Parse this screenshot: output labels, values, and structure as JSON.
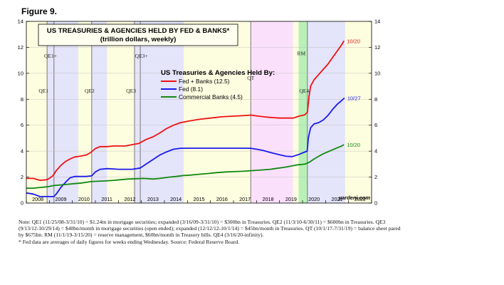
{
  "figure_label": "Figure 9.",
  "credit": "yardeni.com",
  "notes": [
    "Note: QE1 (11/25/08-3/31/10) = $1.24tn in mortgage securities; expanded (3/16/09-3/31/10) = $300bn in Treasuries. QE2 (11/3/10-6/30/11) = $600bn in Treasuries. QE3 (9/13/12-10/29/14) = $40bn/month in mortgage securities (open ended); expanded (12/12/12-10/1/14) = $45bn/month in Treasuries. QT (10/1/17-7/31/19) = balance sheet pared by $675bn. RM (11/1/19-3/15/20) = reserve management, $60bn/month in Treasury bills. QE4 (3/16/20-infinity).",
    "*  Fed data are averages of daily figures for weeks ending Wednesday. Source: Federal Reserve Board."
  ],
  "colors": {
    "fed_banks": "#ee1111",
    "fed": "#1a1aee",
    "banks": "#118811",
    "band_yellow": "#fdfde0",
    "band_blue": "#e4e4fa",
    "band_pink": "#fbe0fb",
    "band_green": "#b8f0b8",
    "title_box": "#fffff0"
  },
  "chart_data": {
    "type": "line",
    "title": "US TREASURIES & AGENCIES HELD BY FED & BANKS*",
    "subtitle": "(trillion dollars, weekly)",
    "legend_title": "US Treasuries & Agencies Held By:",
    "x_ticks": [
      "2008",
      "2009",
      "2010",
      "2011",
      "2012",
      "2013",
      "2014",
      "2015",
      "2016",
      "2017",
      "2018",
      "2019",
      "2020",
      "2021",
      "2022"
    ],
    "y_ticks": [
      "0",
      "2",
      "4",
      "6",
      "8",
      "10",
      "12",
      "14"
    ],
    "xlim": [
      2008.0,
      2023.0
    ],
    "ylim": [
      0,
      14
    ],
    "regions": [
      {
        "label": "QE1",
        "start": 2008.9,
        "end": 2010.25,
        "fill": "band_blue"
      },
      {
        "label": "QE1+",
        "start": 2009.2,
        "end": 2010.25,
        "fill": "band_blue"
      },
      {
        "label": "QE2",
        "start": 2010.84,
        "end": 2011.5,
        "fill": "band_blue"
      },
      {
        "label": "QE3",
        "start": 2012.7,
        "end": 2014.83,
        "fill": "band_blue"
      },
      {
        "label": "QE3+",
        "start": 2012.95,
        "end": 2014.83,
        "fill": "band_blue"
      },
      {
        "label": "QT",
        "start": 2017.75,
        "end": 2019.58,
        "fill": "band_pink"
      },
      {
        "label": "RM",
        "start": 2019.83,
        "end": 2020.21,
        "fill": "band_green"
      },
      {
        "label": "QE4",
        "start": 2020.21,
        "end": 2021.85,
        "fill": "band_blue"
      }
    ],
    "region_labels": [
      {
        "text": "QE1",
        "x": 2008.75,
        "y": 8.5
      },
      {
        "text": "QE1+",
        "x": 2009.05,
        "y": 11.2
      },
      {
        "text": "QE2",
        "x": 2010.75,
        "y": 8.5
      },
      {
        "text": "QE3",
        "x": 2012.55,
        "y": 8.5
      },
      {
        "text": "QE3+",
        "x": 2013.0,
        "y": 11.2
      },
      {
        "text": "QT",
        "x": 2017.75,
        "y": 9.5
      },
      {
        "text": "RM",
        "x": 2019.95,
        "y": 11.4
      },
      {
        "text": "QE4",
        "x": 2020.07,
        "y": 8.5
      }
    ],
    "series": [
      {
        "name": "Fed + Banks (12.5)",
        "color": "fed_banks",
        "end_label": "10/20",
        "points": [
          [
            2008.0,
            1.9
          ],
          [
            2008.3,
            1.9
          ],
          [
            2008.6,
            1.75
          ],
          [
            2008.9,
            1.8
          ],
          [
            2009.0,
            1.9
          ],
          [
            2009.15,
            2.1
          ],
          [
            2009.3,
            2.5
          ],
          [
            2009.5,
            2.9
          ],
          [
            2009.7,
            3.2
          ],
          [
            2009.9,
            3.4
          ],
          [
            2010.1,
            3.55
          ],
          [
            2010.3,
            3.6
          ],
          [
            2010.6,
            3.7
          ],
          [
            2010.8,
            3.9
          ],
          [
            2011.0,
            4.2
          ],
          [
            2011.2,
            4.35
          ],
          [
            2011.5,
            4.35
          ],
          [
            2011.8,
            4.4
          ],
          [
            2012.0,
            4.4
          ],
          [
            2012.3,
            4.4
          ],
          [
            2012.6,
            4.5
          ],
          [
            2012.9,
            4.6
          ],
          [
            2013.2,
            4.9
          ],
          [
            2013.5,
            5.1
          ],
          [
            2013.8,
            5.4
          ],
          [
            2014.1,
            5.75
          ],
          [
            2014.4,
            6.0
          ],
          [
            2014.7,
            6.2
          ],
          [
            2015.0,
            6.3
          ],
          [
            2015.5,
            6.45
          ],
          [
            2016.0,
            6.55
          ],
          [
            2016.5,
            6.65
          ],
          [
            2017.0,
            6.7
          ],
          [
            2017.5,
            6.75
          ],
          [
            2017.75,
            6.78
          ],
          [
            2018.0,
            6.72
          ],
          [
            2018.3,
            6.65
          ],
          [
            2018.6,
            6.6
          ],
          [
            2019.0,
            6.55
          ],
          [
            2019.3,
            6.55
          ],
          [
            2019.6,
            6.55
          ],
          [
            2019.85,
            6.7
          ],
          [
            2020.1,
            6.8
          ],
          [
            2020.21,
            7.0
          ],
          [
            2020.28,
            8.2
          ],
          [
            2020.35,
            9.0
          ],
          [
            2020.5,
            9.5
          ],
          [
            2020.7,
            9.9
          ],
          [
            2020.9,
            10.3
          ],
          [
            2021.1,
            10.7
          ],
          [
            2021.3,
            11.2
          ],
          [
            2021.5,
            11.7
          ],
          [
            2021.7,
            12.2
          ],
          [
            2021.8,
            12.5
          ]
        ]
      },
      {
        "name": "Fed (8.1)",
        "color": "fed",
        "end_label": "10/27",
        "points": [
          [
            2008.0,
            0.78
          ],
          [
            2008.3,
            0.7
          ],
          [
            2008.6,
            0.5
          ],
          [
            2008.9,
            0.5
          ],
          [
            2009.2,
            0.5
          ],
          [
            2009.3,
            0.7
          ],
          [
            2009.5,
            1.2
          ],
          [
            2009.7,
            1.6
          ],
          [
            2009.9,
            1.95
          ],
          [
            2010.1,
            2.05
          ],
          [
            2010.3,
            2.05
          ],
          [
            2010.6,
            2.05
          ],
          [
            2010.84,
            2.1
          ],
          [
            2011.0,
            2.4
          ],
          [
            2011.2,
            2.6
          ],
          [
            2011.5,
            2.65
          ],
          [
            2011.8,
            2.63
          ],
          [
            2012.0,
            2.6
          ],
          [
            2012.3,
            2.6
          ],
          [
            2012.6,
            2.6
          ],
          [
            2012.95,
            2.7
          ],
          [
            2013.2,
            3.0
          ],
          [
            2013.5,
            3.35
          ],
          [
            2013.8,
            3.7
          ],
          [
            2014.1,
            3.95
          ],
          [
            2014.4,
            4.15
          ],
          [
            2014.7,
            4.22
          ],
          [
            2015.0,
            4.23
          ],
          [
            2015.5,
            4.23
          ],
          [
            2016.0,
            4.23
          ],
          [
            2016.5,
            4.23
          ],
          [
            2017.0,
            4.23
          ],
          [
            2017.5,
            4.23
          ],
          [
            2017.75,
            4.22
          ],
          [
            2018.0,
            4.15
          ],
          [
            2018.3,
            4.05
          ],
          [
            2018.6,
            3.9
          ],
          [
            2019.0,
            3.72
          ],
          [
            2019.3,
            3.6
          ],
          [
            2019.55,
            3.58
          ],
          [
            2019.85,
            3.75
          ],
          [
            2020.05,
            3.9
          ],
          [
            2020.2,
            4.0
          ],
          [
            2020.25,
            5.0
          ],
          [
            2020.35,
            5.8
          ],
          [
            2020.5,
            6.1
          ],
          [
            2020.7,
            6.2
          ],
          [
            2020.9,
            6.4
          ],
          [
            2021.1,
            6.75
          ],
          [
            2021.3,
            7.2
          ],
          [
            2021.5,
            7.6
          ],
          [
            2021.7,
            7.9
          ],
          [
            2021.82,
            8.1
          ]
        ]
      },
      {
        "name": "Commercial Banks (4.5)",
        "color": "banks",
        "end_label": "10/20",
        "points": [
          [
            2008.0,
            1.15
          ],
          [
            2008.3,
            1.15
          ],
          [
            2008.6,
            1.2
          ],
          [
            2008.9,
            1.25
          ],
          [
            2009.2,
            1.35
          ],
          [
            2009.5,
            1.4
          ],
          [
            2009.8,
            1.45
          ],
          [
            2010.1,
            1.5
          ],
          [
            2010.4,
            1.55
          ],
          [
            2010.8,
            1.65
          ],
          [
            2011.1,
            1.68
          ],
          [
            2011.4,
            1.7
          ],
          [
            2011.8,
            1.75
          ],
          [
            2012.1,
            1.8
          ],
          [
            2012.4,
            1.85
          ],
          [
            2012.8,
            1.88
          ],
          [
            2013.1,
            1.9
          ],
          [
            2013.5,
            1.85
          ],
          [
            2013.8,
            1.9
          ],
          [
            2014.2,
            2.0
          ],
          [
            2014.5,
            2.05
          ],
          [
            2014.8,
            2.12
          ],
          [
            2015.1,
            2.15
          ],
          [
            2015.5,
            2.22
          ],
          [
            2015.9,
            2.28
          ],
          [
            2016.3,
            2.35
          ],
          [
            2016.7,
            2.4
          ],
          [
            2017.0,
            2.42
          ],
          [
            2017.4,
            2.45
          ],
          [
            2017.8,
            2.5
          ],
          [
            2018.2,
            2.55
          ],
          [
            2018.6,
            2.6
          ],
          [
            2018.9,
            2.68
          ],
          [
            2019.2,
            2.75
          ],
          [
            2019.5,
            2.85
          ],
          [
            2019.8,
            2.95
          ],
          [
            2020.1,
            3.0
          ],
          [
            2020.3,
            3.15
          ],
          [
            2020.5,
            3.4
          ],
          [
            2020.7,
            3.6
          ],
          [
            2020.9,
            3.8
          ],
          [
            2021.1,
            3.95
          ],
          [
            2021.3,
            4.1
          ],
          [
            2021.5,
            4.25
          ],
          [
            2021.7,
            4.4
          ],
          [
            2021.8,
            4.5
          ]
        ]
      }
    ]
  }
}
